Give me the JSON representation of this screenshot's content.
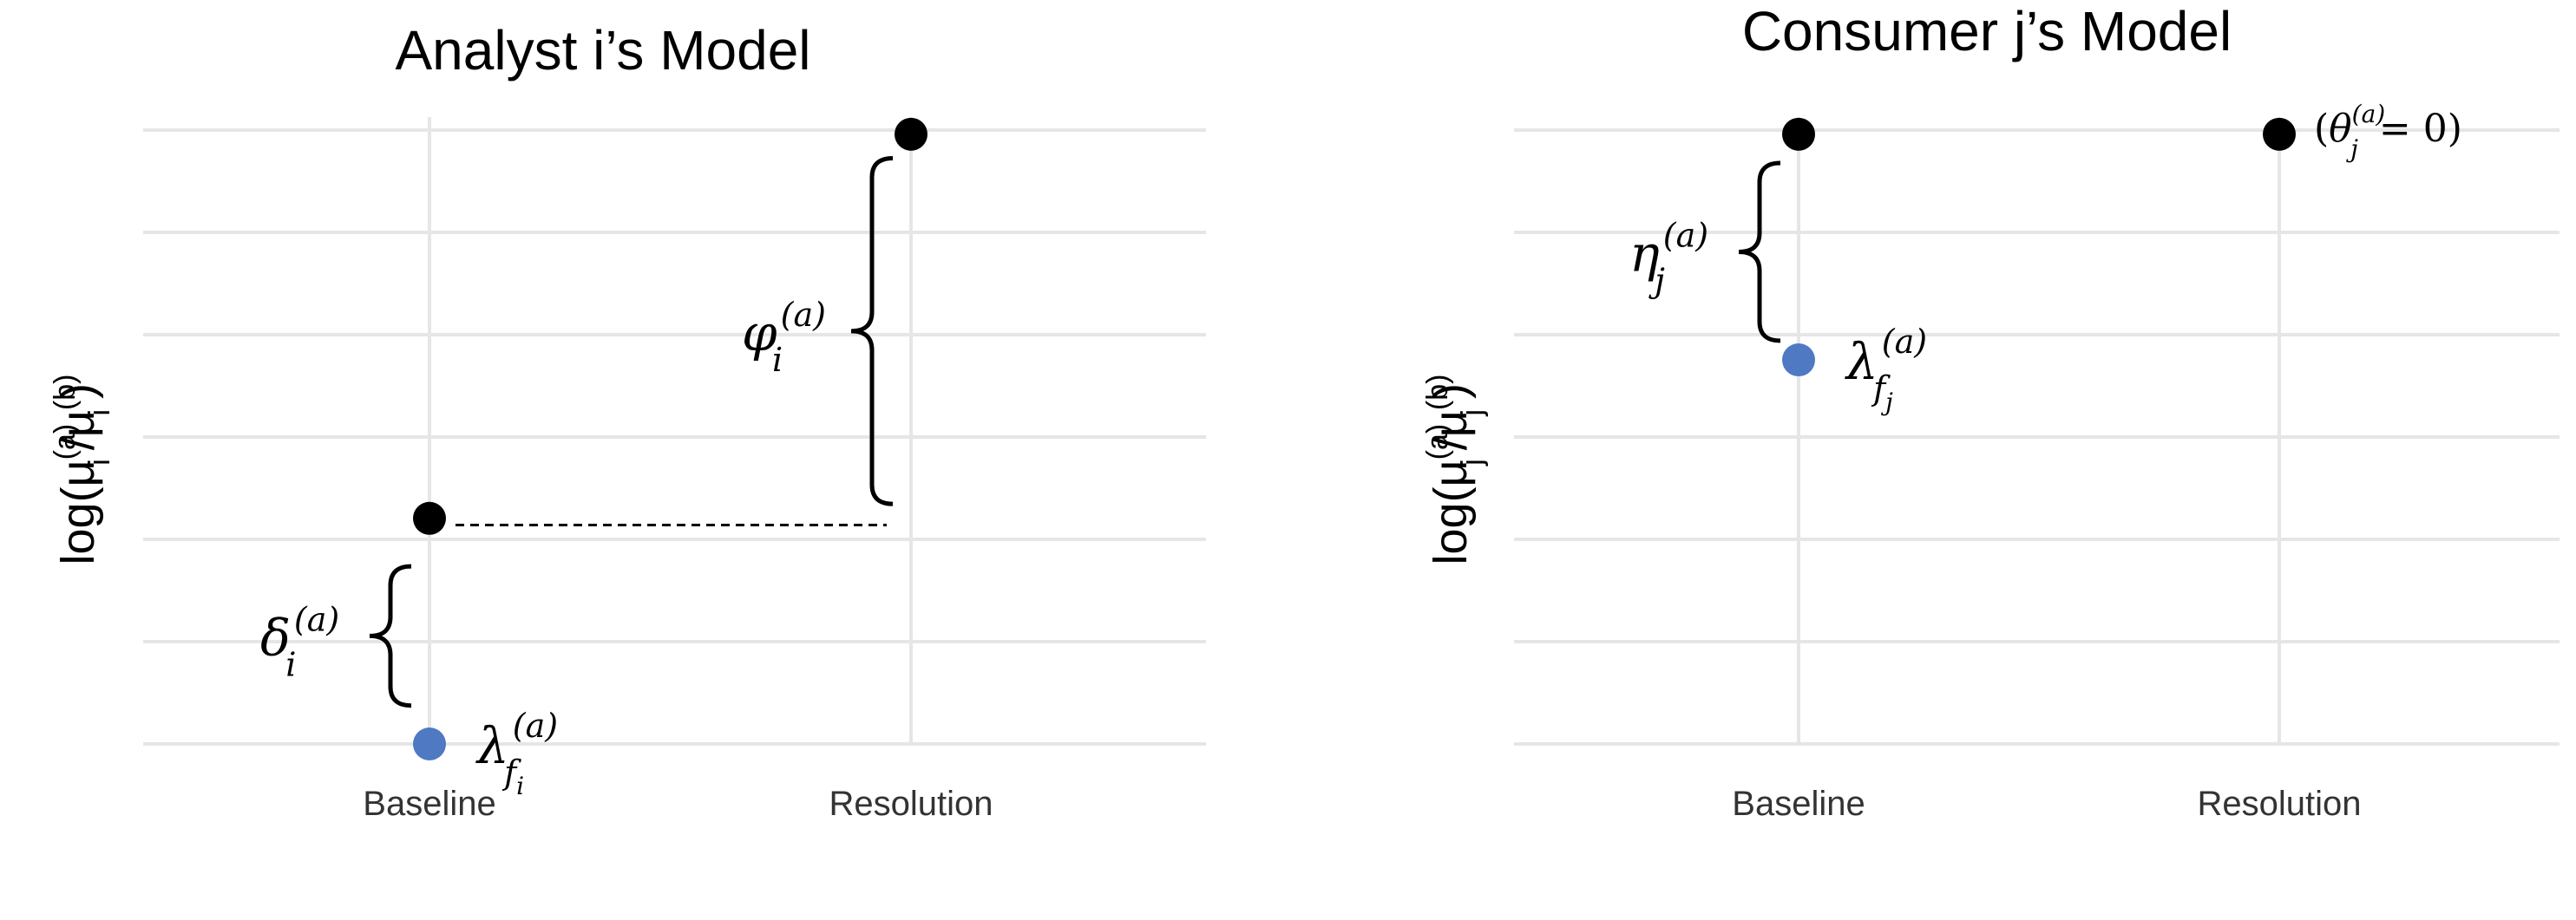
{
  "chart_data": [
    {
      "type": "scatter",
      "title": "Analyst i’s Model",
      "ylabel": {
        "main": "log(μ",
        "sup_a": "(a)",
        "sub": "i",
        "slash": "/μ",
        "sup_b": "(b)",
        "sub2": "i",
        "close": ")"
      },
      "categories": [
        "Baseline",
        "Resolution"
      ],
      "ylim": [
        0,
        6.8
      ],
      "points": [
        {
          "x": "Baseline",
          "y": 0.0,
          "color": "#4f79c2",
          "label": {
            "base": "λ",
            "sup": "(a)",
            "sub": "f",
            "subsub": "i"
          }
        },
        {
          "x": "Baseline",
          "y": 2.35,
          "color": "#000000"
        },
        {
          "x": "Resolution",
          "y": 6.35,
          "color": "#000000"
        }
      ],
      "annotations": [
        {
          "type": "brace",
          "x": "Baseline",
          "from": 0.4,
          "to": 1.85,
          "label": {
            "base": "δ",
            "sup": "(a)",
            "sub": "i"
          }
        },
        {
          "type": "brace",
          "x": "Resolution",
          "from": 2.5,
          "to": 6.1,
          "label": {
            "base": "φ",
            "sup": "(a)",
            "sub": "i"
          }
        },
        {
          "type": "dashed",
          "y": 2.28,
          "from": "Baseline",
          "to": "Resolution"
        }
      ]
    },
    {
      "type": "scatter",
      "title": "Consumer j’s Model",
      "ylabel": {
        "main": "log(μ",
        "sup_a": "(a)",
        "sub": "j",
        "slash": "/μ",
        "sup_b": "(b)",
        "sub2": "j",
        "close": ")"
      },
      "categories": [
        "Baseline",
        "Resolution"
      ],
      "ylim": [
        0,
        6.8
      ],
      "points": [
        {
          "x": "Baseline",
          "y": 4.0,
          "color": "#4f79c2",
          "label": {
            "base": "λ",
            "sup": "(a)",
            "sub": "f",
            "subsub": "j"
          }
        },
        {
          "x": "Baseline",
          "y": 6.35,
          "color": "#000000"
        },
        {
          "x": "Resolution",
          "y": 6.35,
          "color": "#000000",
          "label": {
            "pre": "(",
            "base": "θ",
            "sup": "(a)",
            "sub": "j",
            "post": " = 0)"
          }
        }
      ],
      "annotations": [
        {
          "type": "brace",
          "x": "Baseline",
          "from": 4.2,
          "to": 6.05,
          "label": {
            "base": "η",
            "sup": "(a)",
            "sub": "j"
          }
        }
      ]
    }
  ]
}
